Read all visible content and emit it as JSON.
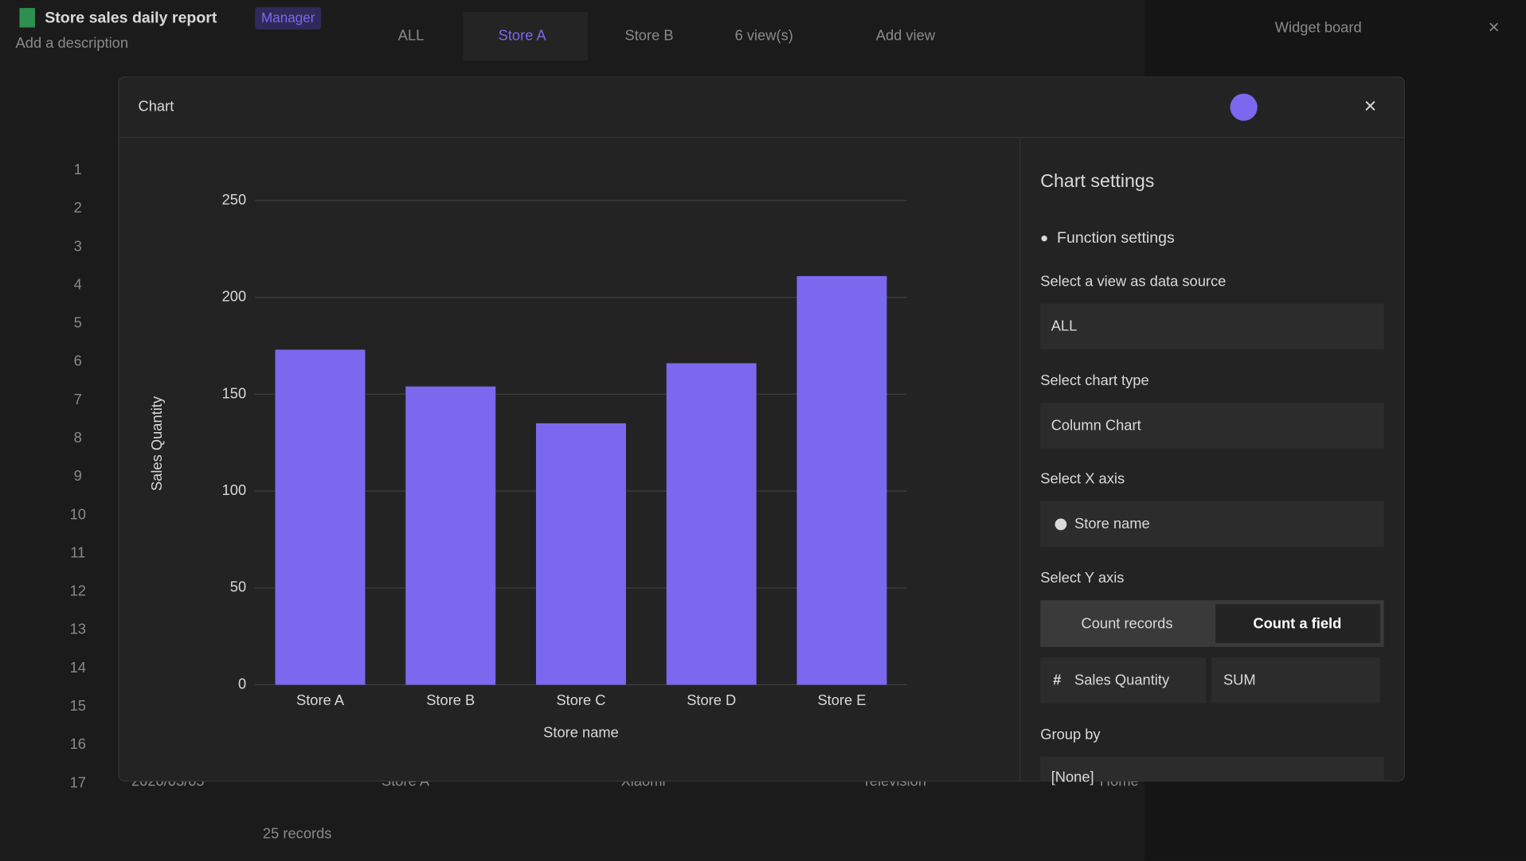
{
  "header": {
    "title": "Store sales daily report",
    "role": "Manager",
    "description": "Add a description",
    "views": [
      "ALL",
      "Store A",
      "Store B"
    ],
    "view_count": "6 view(s)",
    "add_view": "Add view",
    "widget_board": "Widget board"
  },
  "row_numbers": [
    1,
    2,
    3,
    4,
    5,
    6,
    7,
    8,
    9,
    10,
    11,
    12,
    13,
    14,
    15,
    16,
    17
  ],
  "background_row": [
    "2020/03/05",
    "Store A",
    "Xiaomi",
    "Television",
    "Home"
  ],
  "footer": {
    "records": "25 records"
  },
  "dialog": {
    "title": "Chart"
  },
  "chart_data": {
    "type": "bar",
    "x_label": "Store name",
    "y_label": "Sales Quantity",
    "categories": [
      "Store A",
      "Store B",
      "Store C",
      "Store D",
      "Store E"
    ],
    "values": [
      173,
      154,
      135,
      166,
      211
    ],
    "color": "#7b68ee",
    "ylim": [
      0,
      250
    ],
    "yticks": [
      0,
      50,
      100,
      150,
      200,
      250
    ],
    "grid": true
  },
  "settings": {
    "title": "Chart settings",
    "section": "Function settings",
    "data_source_label": "Select a view as data source",
    "data_source": "ALL",
    "chart_type_label": "Select chart type",
    "chart_type": "Column Chart",
    "x_axis_label": "Select X axis",
    "x_axis": "Store name",
    "y_axis_label": "Select Y axis",
    "y_axis_options": [
      "Count records",
      "Count a field"
    ],
    "y_field": "Sales Quantity",
    "aggregation": "SUM",
    "group_by_label": "Group by",
    "group_by": "[None]"
  }
}
